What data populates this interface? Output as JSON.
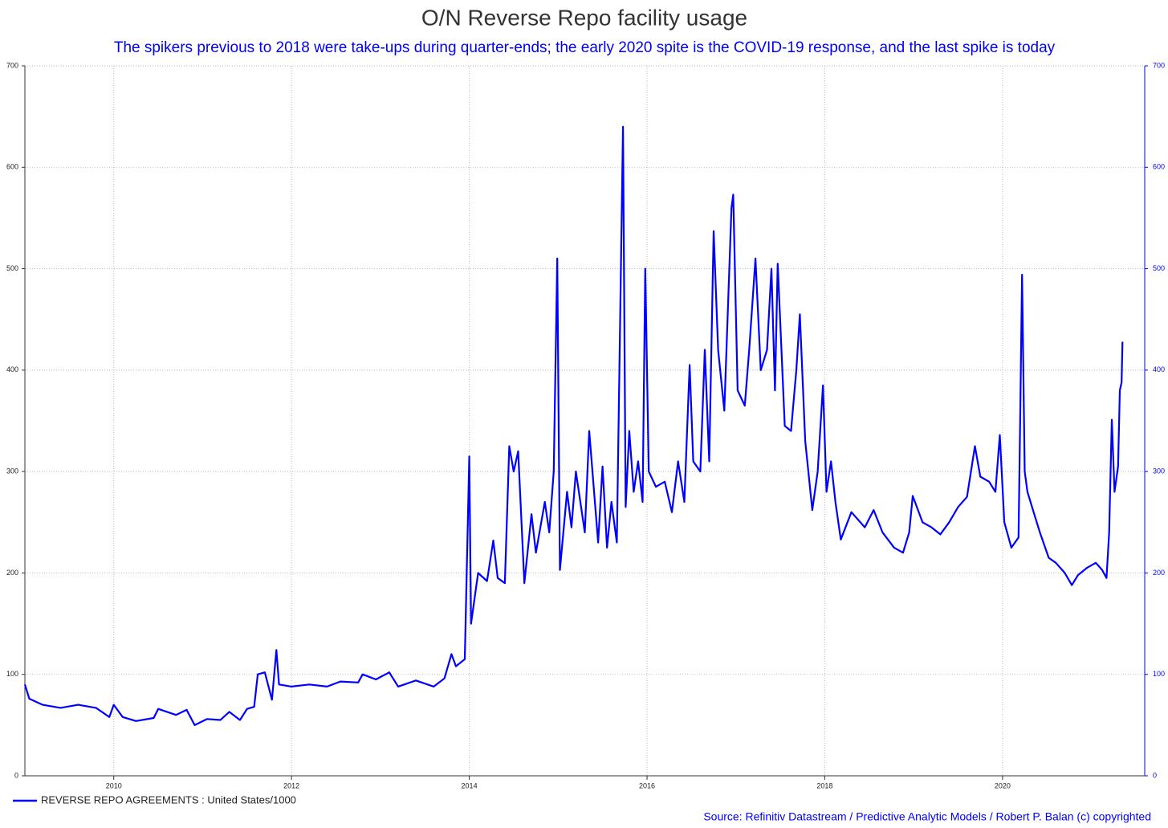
{
  "chart_data": {
    "type": "line",
    "title": "O/N Reverse Repo facility usage",
    "subtitle": "The spikers previous to 2018 were take-ups during quarter-ends; the early 2020 spite is the COVID-19 response, and the last spike is today",
    "source": "Source: Refinitiv Datastream /  Predictive Analytic Models / Robert P. Balan (c) copyrighted",
    "xlim": [
      2009,
      2021.6
    ],
    "xticks": [
      2010,
      2012,
      2014,
      2016,
      2018,
      2020
    ],
    "ylim": [
      0,
      700
    ],
    "yticks": [
      0,
      100,
      200,
      300,
      400,
      500,
      600,
      700
    ],
    "grid": true,
    "x": [
      2009.0,
      2009.05,
      2009.2,
      2009.4,
      2009.6,
      2009.8,
      2009.95,
      2010.0,
      2010.1,
      2010.25,
      2010.45,
      2010.5,
      2010.7,
      2010.82,
      2010.91,
      2011.05,
      2011.2,
      2011.3,
      2011.42,
      2011.5,
      2011.58,
      2011.62,
      2011.7,
      2011.78,
      2011.83,
      2011.86,
      2012.0,
      2012.2,
      2012.4,
      2012.55,
      2012.75,
      2012.8,
      2012.95,
      2013.1,
      2013.2,
      2013.4,
      2013.6,
      2013.72,
      2013.8,
      2013.85,
      2013.95,
      2014.0,
      2014.02,
      2014.1,
      2014.2,
      2014.27,
      2014.32,
      2014.4,
      2014.45,
      2014.5,
      2014.55,
      2014.62,
      2014.7,
      2014.75,
      2014.85,
      2014.9,
      2014.95,
      2014.99,
      2015.02,
      2015.1,
      2015.15,
      2015.2,
      2015.3,
      2015.35,
      2015.45,
      2015.5,
      2015.55,
      2015.6,
      2015.66,
      2015.73,
      2015.76,
      2015.8,
      2015.85,
      2015.9,
      2015.95,
      2015.98,
      2016.02,
      2016.1,
      2016.2,
      2016.28,
      2016.35,
      2016.42,
      2016.48,
      2016.52,
      2016.6,
      2016.65,
      2016.7,
      2016.75,
      2016.8,
      2016.87,
      2016.95,
      2016.97,
      2017.02,
      2017.1,
      2017.15,
      2017.22,
      2017.28,
      2017.35,
      2017.4,
      2017.44,
      2017.47,
      2017.55,
      2017.62,
      2017.68,
      2017.72,
      2017.78,
      2017.86,
      2017.92,
      2017.98,
      2018.02,
      2018.07,
      2018.12,
      2018.18,
      2018.3,
      2018.45,
      2018.55,
      2018.65,
      2018.78,
      2018.88,
      2018.95,
      2018.99,
      2019.1,
      2019.2,
      2019.3,
      2019.4,
      2019.5,
      2019.6,
      2019.69,
      2019.75,
      2019.85,
      2019.92,
      2019.97,
      2020.02,
      2020.1,
      2020.18,
      2020.2,
      2020.22,
      2020.25,
      2020.28,
      2020.35,
      2020.42,
      2020.52,
      2020.6,
      2020.7,
      2020.78,
      2020.85,
      2020.95,
      2021.05,
      2021.12,
      2021.17,
      2021.2,
      2021.23,
      2021.26,
      2021.3,
      2021.32,
      2021.34,
      2021.35
    ],
    "series": [
      {
        "name": "REVERSE REPO AGREEMENTS : United States/1000",
        "color": "#0000ff",
        "values": [
          90,
          76,
          70,
          67,
          70,
          67,
          58,
          70,
          58,
          54,
          57,
          66,
          60,
          65,
          50,
          56,
          55,
          63,
          55,
          66,
          68,
          100,
          102,
          75,
          124,
          90,
          88,
          90,
          88,
          93,
          92,
          100,
          95,
          102,
          88,
          94,
          88,
          96,
          120,
          108,
          115,
          315,
          150,
          200,
          192,
          232,
          195,
          190,
          325,
          300,
          320,
          190,
          258,
          220,
          270,
          240,
          300,
          510,
          203,
          280,
          245,
          300,
          240,
          340,
          230,
          305,
          225,
          270,
          230,
          640,
          265,
          340,
          280,
          310,
          270,
          500,
          300,
          285,
          290,
          260,
          310,
          270,
          405,
          310,
          300,
          420,
          310,
          537,
          420,
          360,
          560,
          573,
          380,
          365,
          420,
          510,
          400,
          420,
          500,
          380,
          505,
          345,
          340,
          400,
          455,
          330,
          262,
          300,
          385,
          280,
          310,
          270,
          233,
          260,
          245,
          262,
          240,
          225,
          220,
          240,
          276,
          250,
          245,
          238,
          250,
          265,
          275,
          325,
          295,
          290,
          280,
          336,
          250,
          225,
          235,
          360,
          494,
          300,
          280,
          260,
          240,
          215,
          210,
          200,
          188,
          198,
          205,
          210,
          203,
          195,
          240,
          351,
          280,
          305,
          380,
          388,
          428
        ]
      }
    ]
  }
}
